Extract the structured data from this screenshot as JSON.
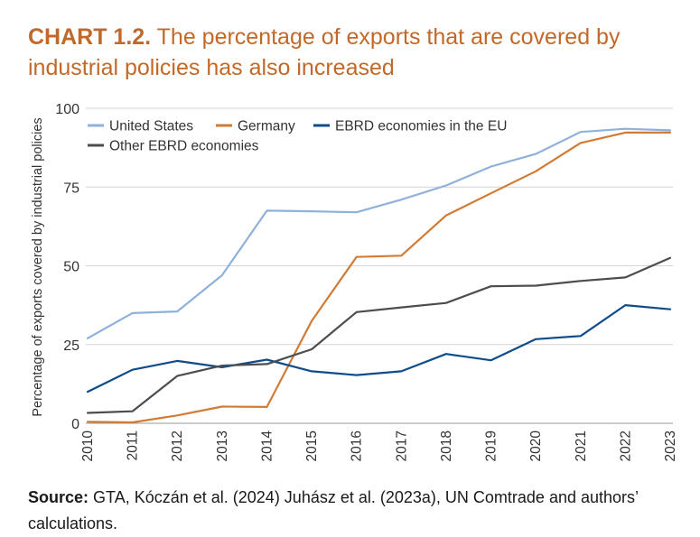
{
  "header": {
    "label": "CHART 1.2.",
    "title_text": "The percentage of exports that are covered by industrial policies has also increased"
  },
  "footer": {
    "source_label": "Source:",
    "source_text": "GTA, Kóczán et al. (2024) Juhász et al. (2023a), UN Comtrade and authors’ calculations."
  },
  "chart_data": {
    "type": "line",
    "title": "The percentage of exports that are covered by industrial policies has also increased",
    "xlabel": "",
    "ylabel": "Percentage of exports covered by industrial policies",
    "categories": [
      "2010",
      "2011",
      "2012",
      "2013",
      "2014",
      "2015",
      "2016",
      "2017",
      "2018",
      "2019",
      "2020",
      "2021",
      "2022",
      "2023"
    ],
    "ylim": [
      0,
      100
    ],
    "yticks": [
      0,
      25,
      50,
      75,
      100
    ],
    "grid": true,
    "legend_position": "top-left",
    "series": [
      {
        "name": "United States",
        "color": "#8fb1da",
        "values": [
          27,
          35,
          35.5,
          47,
          67.5,
          67.3,
          67,
          71,
          75.5,
          81.5,
          85.5,
          92.5,
          93.5,
          93
        ]
      },
      {
        "name": "Germany",
        "color": "#d17b35",
        "values": [
          0.5,
          0.3,
          2.5,
          5.3,
          5.2,
          32.5,
          52.8,
          53.2,
          66,
          73,
          80,
          89,
          92.3,
          92.3
        ]
      },
      {
        "name": "EBRD economies in the EU",
        "color": "#0f4c89",
        "values": [
          10,
          17,
          19.8,
          17.8,
          20.2,
          16.5,
          15.3,
          16.5,
          22,
          20,
          26.7,
          27.7,
          37.5,
          36.2
        ]
      },
      {
        "name": "Other EBRD economies",
        "color": "#4d4d4d",
        "values": [
          3.3,
          3.8,
          15,
          18.3,
          18.8,
          23.5,
          35.3,
          36.8,
          38.2,
          43.5,
          43.7,
          45.2,
          46.3,
          52.5
        ]
      }
    ]
  }
}
